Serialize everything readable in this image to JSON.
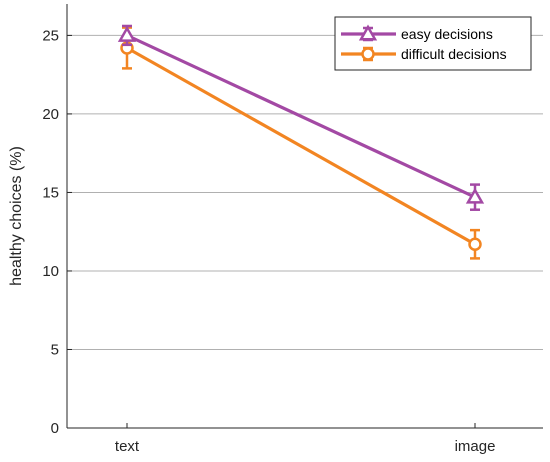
{
  "chart_data": {
    "type": "line",
    "title": "",
    "xlabel": "",
    "ylabel": "healthy choices (%)",
    "categories": [
      "text",
      "image"
    ],
    "ylim": [
      0,
      27
    ],
    "yticks": [
      0,
      5,
      10,
      15,
      20,
      25
    ],
    "grid": "horizontal",
    "legend_position": "top-right",
    "series": [
      {
        "name": "easy decisions",
        "color": "#a349a4",
        "marker": "triangle",
        "values": [
          25.0,
          14.7
        ],
        "error": [
          0.6,
          0.8
        ]
      },
      {
        "name": "difficult decisions",
        "color": "#f28522",
        "marker": "circle",
        "values": [
          24.2,
          11.7
        ],
        "error": [
          1.3,
          0.9
        ]
      }
    ]
  }
}
